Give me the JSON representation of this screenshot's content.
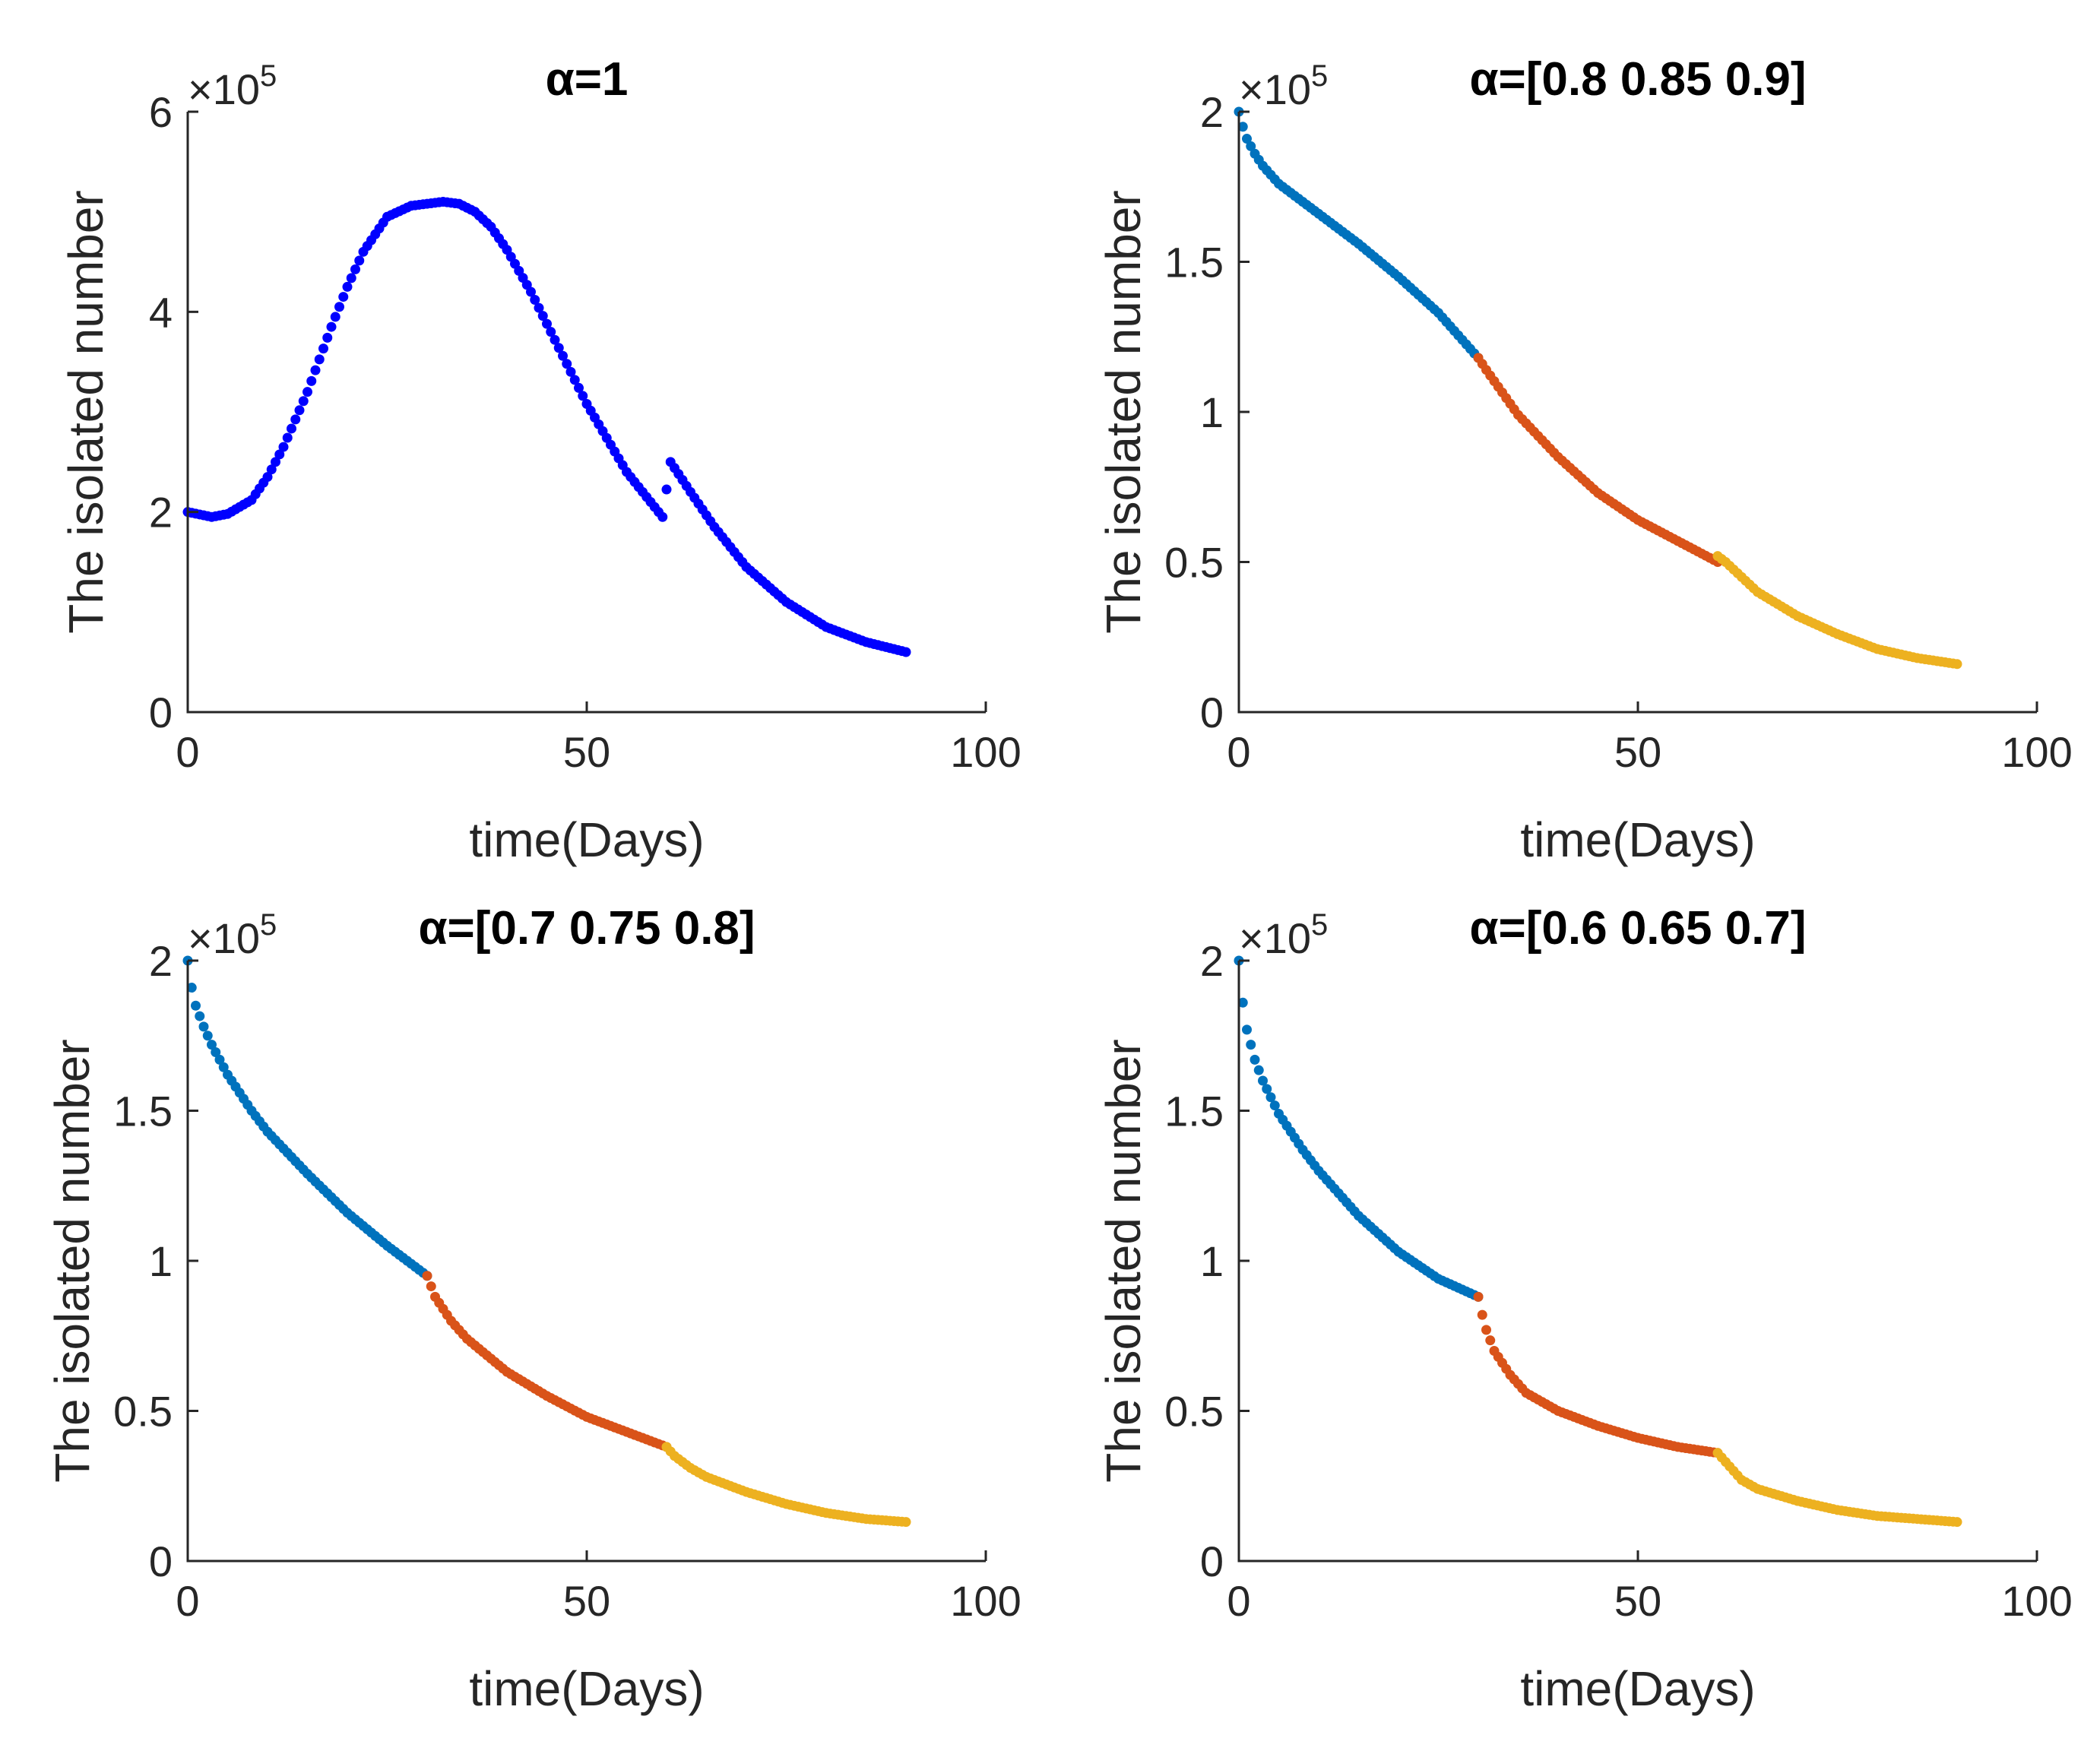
{
  "chart_data": [
    {
      "type": "scatter",
      "title": "α=1",
      "xlabel": "time(Days)",
      "ylabel": "The isolated number",
      "xlim": [
        0,
        100
      ],
      "ylim": [
        0,
        6
      ],
      "y_exponent": "×10",
      "y_exponent_power": "5",
      "xticks": [
        "0",
        "50",
        "100"
      ],
      "yticks": [
        "0",
        "2",
        "4",
        "6"
      ],
      "series": [
        {
          "name": "α=1",
          "color": "#0000FF",
          "x_range": [
            0,
            90
          ],
          "key_x": [
            0,
            3,
            5,
            8,
            10,
            12,
            15,
            18,
            20,
            22,
            25,
            28,
            30,
            32,
            34,
            36,
            38,
            40,
            43,
            46,
            50,
            55,
            59.5,
            60.5,
            63,
            66,
            70,
            75,
            80,
            85,
            90
          ],
          "key_y": [
            2.0,
            1.95,
            1.98,
            2.12,
            2.35,
            2.65,
            3.2,
            3.85,
            4.25,
            4.6,
            4.95,
            5.06,
            5.08,
            5.1,
            5.08,
            5.0,
            4.85,
            4.62,
            4.2,
            3.72,
            3.08,
            2.4,
            1.95,
            2.5,
            2.2,
            1.85,
            1.45,
            1.1,
            0.85,
            0.7,
            0.6
          ]
        }
      ]
    },
    {
      "type": "scatter",
      "title": "α=[0.8 0.85 0.9]",
      "xlabel": "time(Days)",
      "ylabel": "The isolated number",
      "xlim": [
        0,
        100
      ],
      "ylim": [
        0,
        2
      ],
      "y_exponent": "×10",
      "y_exponent_power": "5",
      "xticks": [
        "0",
        "50",
        "100"
      ],
      "yticks": [
        "0",
        "0.5",
        "1",
        "1.5",
        "2"
      ],
      "series": [
        {
          "name": "α=0.8",
          "color": "#0072BD",
          "x_range": [
            0,
            30
          ],
          "key_x": [
            0,
            0.5,
            1,
            2,
            3,
            5,
            8,
            10,
            15,
            20,
            25,
            30
          ],
          "key_y": [
            2.0,
            1.95,
            1.91,
            1.86,
            1.82,
            1.76,
            1.7,
            1.66,
            1.56,
            1.45,
            1.33,
            1.18
          ]
        },
        {
          "name": "α=0.85",
          "color": "#D95319",
          "x_range": [
            30,
            60
          ],
          "key_x": [
            30,
            31,
            35,
            40,
            45,
            50,
            55,
            60
          ],
          "key_y": [
            1.18,
            1.14,
            0.99,
            0.85,
            0.73,
            0.64,
            0.57,
            0.5
          ]
        },
        {
          "name": "α=0.9",
          "color": "#EDB120",
          "x_range": [
            60,
            90
          ],
          "key_x": [
            60,
            61,
            65,
            70,
            75,
            80,
            85,
            90
          ],
          "key_y": [
            0.52,
            0.5,
            0.4,
            0.32,
            0.26,
            0.21,
            0.18,
            0.16
          ]
        }
      ]
    },
    {
      "type": "scatter",
      "title": "α=[0.7 0.75 0.8]",
      "xlabel": "time(Days)",
      "ylabel": "The isolated number",
      "xlim": [
        0,
        100
      ],
      "ylim": [
        0,
        2
      ],
      "y_exponent": "×10",
      "y_exponent_power": "5",
      "xticks": [
        "0",
        "50",
        "100"
      ],
      "yticks": [
        "0",
        "0.5",
        "1",
        "1.5",
        "2"
      ],
      "series": [
        {
          "name": "α=0.7",
          "color": "#0072BD",
          "x_range": [
            0,
            30
          ],
          "key_x": [
            0,
            0.5,
            1,
            2,
            3,
            5,
            8,
            10,
            15,
            20,
            25,
            30
          ],
          "key_y": [
            2.0,
            1.91,
            1.85,
            1.78,
            1.72,
            1.62,
            1.5,
            1.43,
            1.29,
            1.16,
            1.05,
            0.95
          ]
        },
        {
          "name": "α=0.75",
          "color": "#D95319",
          "x_range": [
            30,
            60
          ],
          "key_x": [
            30,
            31,
            33,
            35,
            40,
            45,
            50,
            55,
            60
          ],
          "key_y": [
            0.95,
            0.88,
            0.8,
            0.74,
            0.63,
            0.55,
            0.48,
            0.43,
            0.38
          ]
        },
        {
          "name": "α=0.8",
          "color": "#EDB120",
          "x_range": [
            60,
            90
          ],
          "key_x": [
            60,
            61,
            63,
            65,
            70,
            75,
            80,
            85,
            90
          ],
          "key_y": [
            0.38,
            0.35,
            0.31,
            0.28,
            0.23,
            0.19,
            0.16,
            0.14,
            0.13
          ]
        }
      ]
    },
    {
      "type": "scatter",
      "title": "α=[0.6 0.65 0.7]",
      "xlabel": "time(Days)",
      "ylabel": "The isolated number",
      "xlim": [
        0,
        100
      ],
      "ylim": [
        0,
        2
      ],
      "y_exponent": "×10",
      "y_exponent_power": "5",
      "xticks": [
        "0",
        "50",
        "100"
      ],
      "yticks": [
        "0",
        "0.5",
        "1",
        "1.5",
        "2"
      ],
      "series": [
        {
          "name": "α=0.6",
          "color": "#0072BD",
          "x_range": [
            0,
            30
          ],
          "key_x": [
            0,
            0.5,
            1,
            2,
            3,
            5,
            8,
            10,
            15,
            20,
            25,
            30
          ],
          "key_y": [
            2.0,
            1.86,
            1.77,
            1.67,
            1.6,
            1.49,
            1.37,
            1.3,
            1.15,
            1.03,
            0.94,
            0.88
          ]
        },
        {
          "name": "α=0.65",
          "color": "#D95319",
          "x_range": [
            30,
            60
          ],
          "key_x": [
            30,
            30.5,
            31,
            32,
            34,
            36,
            40,
            45,
            50,
            55,
            60
          ],
          "key_y": [
            0.88,
            0.82,
            0.77,
            0.7,
            0.62,
            0.56,
            0.5,
            0.45,
            0.41,
            0.38,
            0.36
          ]
        },
        {
          "name": "α=0.7",
          "color": "#EDB120",
          "x_range": [
            60,
            90
          ],
          "key_x": [
            60,
            61,
            62,
            63,
            65,
            70,
            75,
            80,
            85,
            90
          ],
          "key_y": [
            0.36,
            0.33,
            0.3,
            0.27,
            0.24,
            0.2,
            0.17,
            0.15,
            0.14,
            0.13
          ]
        }
      ]
    }
  ]
}
